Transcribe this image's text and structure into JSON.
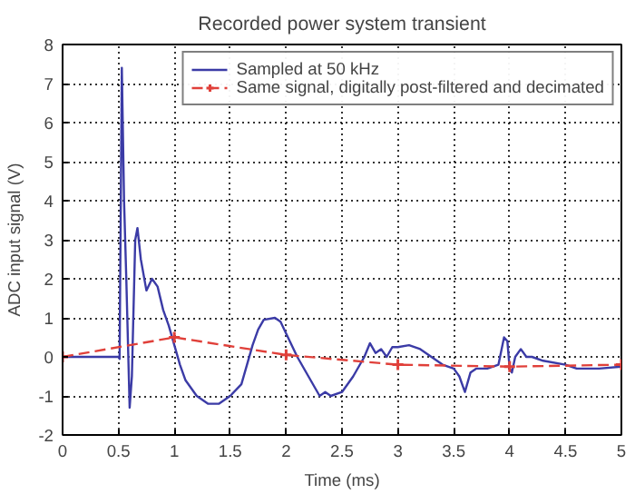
{
  "chart_data": {
    "type": "line",
    "title": "Recorded power system transient",
    "xlabel": "Time (ms)",
    "ylabel": "ADC input signal (V)",
    "xlim": [
      0,
      5
    ],
    "ylim": [
      -2,
      8
    ],
    "xticks": [
      0,
      0.5,
      1,
      1.5,
      2,
      2.5,
      3,
      3.5,
      4,
      4.5,
      5
    ],
    "yticks": [
      -2,
      -1,
      0,
      1,
      2,
      3,
      4,
      5,
      6,
      7,
      8
    ],
    "grid": true,
    "legend": "top right",
    "series": [
      {
        "name": "Sampled at 50 kHz",
        "color": "#3b3ba6",
        "marker": "none",
        "line_style": "solid",
        "x": [
          0,
          0.5,
          0.51,
          0.53,
          0.55,
          0.57,
          0.6,
          0.62,
          0.65,
          0.67,
          0.7,
          0.75,
          0.8,
          0.85,
          0.9,
          0.95,
          1.0,
          1.05,
          1.1,
          1.2,
          1.3,
          1.4,
          1.5,
          1.6,
          1.65,
          1.7,
          1.75,
          1.8,
          1.9,
          1.95,
          2.0,
          2.1,
          2.2,
          2.3,
          2.35,
          2.4,
          2.5,
          2.6,
          2.7,
          2.75,
          2.8,
          2.85,
          2.9,
          2.95,
          3.0,
          3.1,
          3.2,
          3.3,
          3.4,
          3.5,
          3.55,
          3.6,
          3.65,
          3.7,
          3.8,
          3.9,
          3.95,
          3.98,
          4.0,
          4.02,
          4.05,
          4.1,
          4.15,
          4.2,
          4.3,
          4.5,
          4.6,
          4.8,
          5.0
        ],
        "values": [
          0,
          0,
          -0.05,
          7.4,
          4,
          2,
          -1.3,
          -0.5,
          3,
          3.3,
          2.5,
          1.7,
          2.0,
          1.8,
          1.2,
          0.8,
          0.3,
          -0.2,
          -0.6,
          -1.0,
          -1.2,
          -1.2,
          -1.0,
          -0.7,
          -0.2,
          0.3,
          0.7,
          0.95,
          1.0,
          0.9,
          0.6,
          0.0,
          -0.5,
          -1.0,
          -0.9,
          -1.0,
          -0.9,
          -0.5,
          0.0,
          0.35,
          0.1,
          0.2,
          0.0,
          0.25,
          0.25,
          0.3,
          0.2,
          0.0,
          -0.2,
          -0.3,
          -0.5,
          -0.9,
          -0.4,
          -0.3,
          -0.3,
          -0.2,
          0.5,
          0.4,
          -0.3,
          -0.4,
          0.0,
          0.2,
          0.0,
          0.0,
          -0.1,
          -0.2,
          -0.3,
          -0.3,
          -0.25
        ]
      },
      {
        "name": "Same signal, digitally post-filtered and decimated",
        "color": "#e0403a",
        "marker": "cross",
        "line_style": "dashed",
        "x": [
          0,
          1,
          2,
          3,
          4,
          5
        ],
        "values": [
          0,
          0.5,
          0.05,
          -0.2,
          -0.25,
          -0.2
        ]
      }
    ]
  }
}
